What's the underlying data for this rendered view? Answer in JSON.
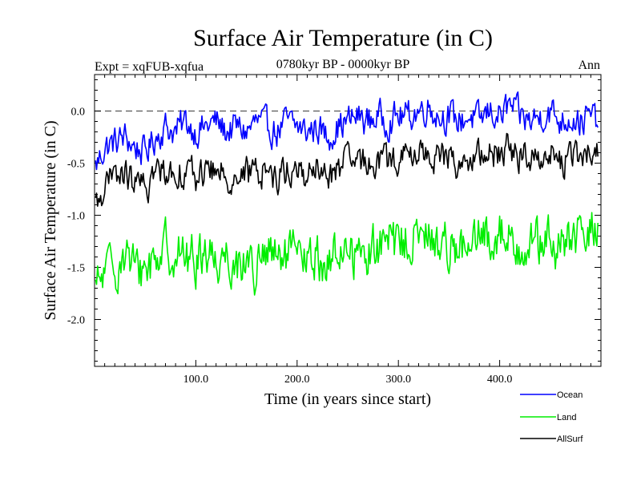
{
  "chart_data": {
    "type": "line",
    "title": "Surface Air Temperature (in C)",
    "subtitle_left": "Expt = xqFUB-xqfua",
    "subtitle_center": "0780kyr BP - 0000kyr BP",
    "subtitle_right": "Ann",
    "xlabel": "Time (in years since start)",
    "ylabel": "Surface Air Temperature (in C)",
    "xlim": [
      0,
      500
    ],
    "ylim": [
      -2.45,
      0.35
    ],
    "xticks": [
      100,
      200,
      300,
      400
    ],
    "xtick_labels": [
      "100.0",
      "200.0",
      "300.0",
      "400.0"
    ],
    "yticks": [
      0.0,
      -0.5,
      -1.0,
      -1.5,
      -2.0
    ],
    "ytick_labels": [
      "0.0",
      "-0.5",
      "-1.0",
      "-1.5",
      "-2.0"
    ],
    "reference_line": 0.0,
    "legend_position": "bottom-right",
    "series": [
      {
        "name": "Ocean",
        "color": "#0000ff",
        "x": [
          0,
          10,
          20,
          30,
          40,
          50,
          60,
          70,
          80,
          90,
          100,
          110,
          120,
          130,
          140,
          150,
          160,
          170,
          180,
          190,
          200,
          210,
          220,
          230,
          240,
          250,
          260,
          270,
          280,
          290,
          300,
          310,
          320,
          330,
          340,
          350,
          360,
          370,
          380,
          390,
          400,
          410,
          420,
          430,
          440,
          450,
          460,
          470,
          480,
          490,
          497
        ],
        "values": [
          -0.55,
          -0.35,
          -0.3,
          -0.25,
          -0.35,
          -0.4,
          -0.25,
          -0.15,
          -0.2,
          -0.1,
          -0.2,
          -0.15,
          -0.1,
          -0.2,
          -0.15,
          -0.2,
          -0.1,
          -0.15,
          -0.2,
          -0.1,
          -0.15,
          -0.2,
          -0.15,
          -0.25,
          -0.15,
          -0.1,
          -0.05,
          -0.1,
          -0.05,
          -0.1,
          -0.05,
          -0.05,
          0.0,
          0.05,
          -0.05,
          -0.05,
          -0.1,
          -0.05,
          -0.1,
          0.0,
          -0.05,
          0.05,
          -0.05,
          -0.1,
          -0.05,
          0.0,
          -0.1,
          -0.05,
          -0.1,
          -0.05,
          -0.1
        ]
      },
      {
        "name": "Land",
        "color": "#00ee00",
        "x": [
          0,
          10,
          20,
          30,
          40,
          50,
          60,
          70,
          80,
          90,
          100,
          110,
          120,
          130,
          140,
          150,
          160,
          170,
          180,
          190,
          200,
          210,
          220,
          230,
          240,
          250,
          260,
          270,
          280,
          290,
          300,
          310,
          320,
          330,
          340,
          350,
          360,
          370,
          380,
          390,
          400,
          410,
          420,
          430,
          440,
          450,
          460,
          470,
          480,
          490,
          497
        ],
        "values": [
          -1.75,
          -1.55,
          -1.5,
          -1.35,
          -1.55,
          -1.5,
          -1.4,
          -1.3,
          -1.35,
          -1.4,
          -1.45,
          -1.3,
          -1.45,
          -1.35,
          -1.5,
          -1.4,
          -1.55,
          -1.35,
          -1.45,
          -1.4,
          -1.4,
          -1.45,
          -1.4,
          -1.5,
          -1.35,
          -1.3,
          -1.4,
          -1.35,
          -1.3,
          -1.25,
          -1.3,
          -1.2,
          -1.25,
          -1.2,
          -1.3,
          -1.25,
          -1.3,
          -1.4,
          -1.2,
          -1.25,
          -1.15,
          -1.25,
          -1.3,
          -1.2,
          -1.3,
          -1.25,
          -1.35,
          -1.2,
          -1.25,
          -1.15,
          -1.1
        ]
      },
      {
        "name": "AllSurf",
        "color": "#000000",
        "x": [
          0,
          10,
          20,
          30,
          40,
          50,
          60,
          70,
          80,
          90,
          100,
          110,
          120,
          130,
          140,
          150,
          160,
          170,
          180,
          190,
          200,
          210,
          220,
          230,
          240,
          250,
          260,
          270,
          280,
          290,
          300,
          310,
          320,
          330,
          340,
          350,
          360,
          370,
          380,
          390,
          400,
          410,
          420,
          430,
          440,
          450,
          460,
          470,
          480,
          490,
          497
        ],
        "values": [
          -0.95,
          -0.7,
          -0.65,
          -0.6,
          -0.7,
          -0.75,
          -0.6,
          -0.55,
          -0.6,
          -0.55,
          -0.65,
          -0.55,
          -0.6,
          -0.6,
          -0.65,
          -0.6,
          -0.6,
          -0.55,
          -0.65,
          -0.55,
          -0.6,
          -0.6,
          -0.55,
          -0.65,
          -0.55,
          -0.5,
          -0.5,
          -0.5,
          -0.45,
          -0.5,
          -0.45,
          -0.45,
          -0.4,
          -0.4,
          -0.45,
          -0.45,
          -0.5,
          -0.5,
          -0.45,
          -0.4,
          -0.4,
          -0.35,
          -0.45,
          -0.45,
          -0.4,
          -0.4,
          -0.5,
          -0.45,
          -0.45,
          -0.4,
          -0.4
        ]
      }
    ]
  }
}
